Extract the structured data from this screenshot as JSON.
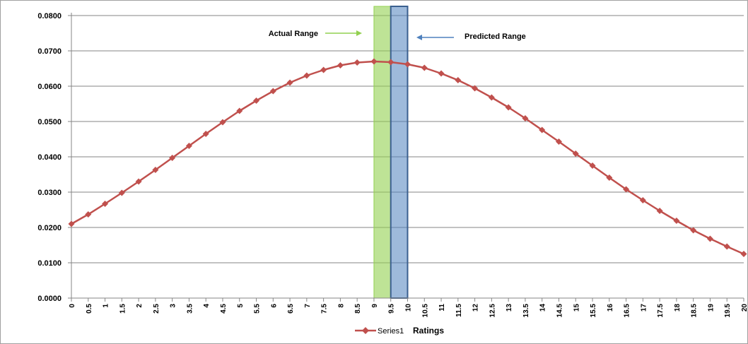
{
  "chart_data": {
    "type": "line",
    "xlabel": "Ratings",
    "ylabel": "",
    "ylim": [
      0,
      0.08
    ],
    "xlim": [
      0,
      20
    ],
    "y_ticks": [
      "0.0000",
      "0.0100",
      "0.0200",
      "0.0300",
      "0.0400",
      "0.0500",
      "0.0600",
      "0.0700",
      "0.0800"
    ],
    "x": [
      0,
      0.5,
      1,
      1.5,
      2,
      2.5,
      3,
      3.5,
      4,
      4.5,
      5,
      5.5,
      6,
      6.5,
      7,
      7.5,
      8,
      8.5,
      9,
      9.5,
      10,
      10.5,
      11,
      11.5,
      12,
      12.5,
      13,
      13.5,
      14,
      14.5,
      15,
      15.5,
      16,
      16.5,
      17,
      17.5,
      18,
      18.5,
      19,
      19.5,
      20
    ],
    "x_tick_labels": [
      "0",
      "0.5",
      "1",
      "1.5",
      "2",
      "2.5",
      "3",
      "3.5",
      "4",
      "4.5",
      "5",
      "5.5",
      "6",
      "6.5",
      "7",
      "7.5",
      "8",
      "8.5",
      "9",
      "9.5",
      "10",
      "10.5",
      "11",
      "11.5",
      "12",
      "12.5",
      "13",
      "13.5",
      "14",
      "14.5",
      "15",
      "15.5",
      "16",
      "16.5",
      "17",
      "17.5",
      "18",
      "18.5",
      "19",
      "19.5",
      "20"
    ],
    "series": [
      {
        "name": "Series1",
        "color": "#c0504d",
        "marker": "diamond",
        "values": [
          0.021,
          0.0237,
          0.0267,
          0.0298,
          0.033,
          0.0363,
          0.0397,
          0.0431,
          0.0465,
          0.0498,
          0.053,
          0.0559,
          0.0586,
          0.061,
          0.063,
          0.0646,
          0.0659,
          0.0667,
          0.067,
          0.0668,
          0.0662,
          0.0652,
          0.0636,
          0.0617,
          0.0594,
          0.0568,
          0.054,
          0.0509,
          0.0476,
          0.0443,
          0.0409,
          0.0375,
          0.0341,
          0.0308,
          0.0277,
          0.0247,
          0.0219,
          0.0192,
          0.0168,
          0.0146,
          0.0125
        ]
      }
    ],
    "grid": true,
    "legend_position": "bottom",
    "ranges": [
      {
        "label": "Actual Range",
        "x_start": 9,
        "x_end": 9.5,
        "color": "#92d050",
        "arrow_color": "#92d050"
      },
      {
        "label": "Predicted Range",
        "x_start": 9.5,
        "x_end": 10,
        "color": "#4f81bd",
        "arrow_color": "#4f81bd"
      }
    ]
  }
}
